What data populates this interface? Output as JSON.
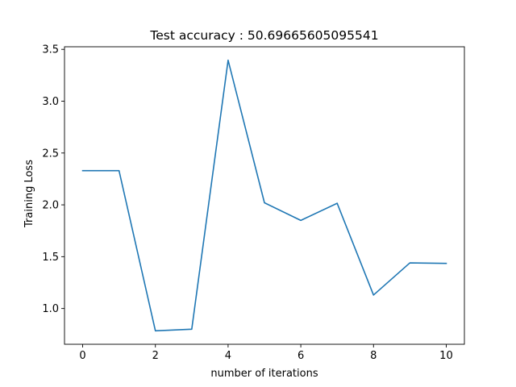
{
  "chart_data": {
    "type": "line",
    "title": "Test accuracy : 50.69665605095541",
    "xlabel": "number of iterations",
    "ylabel": "Training Loss",
    "x": [
      0,
      1,
      2,
      3,
      4,
      5,
      6,
      7,
      8,
      9,
      10
    ],
    "series": [
      {
        "values": [
          2.33,
          2.33,
          0.785,
          0.8,
          3.395,
          2.02,
          1.85,
          2.015,
          1.13,
          1.44,
          1.435
        ],
        "color": "#1f77b4"
      }
    ],
    "xlim": [
      -0.5,
      10.5
    ],
    "ylim": [
      0.655,
      3.525
    ],
    "xticks": [
      0,
      2,
      4,
      6,
      8,
      10
    ],
    "yticks": [
      1.0,
      1.5,
      2.0,
      2.5,
      3.0,
      3.5
    ],
    "ytick_labels": [
      "1.0",
      "1.5",
      "2.0",
      "2.5",
      "3.0",
      "3.5"
    ],
    "grid": false,
    "legend": "none"
  }
}
